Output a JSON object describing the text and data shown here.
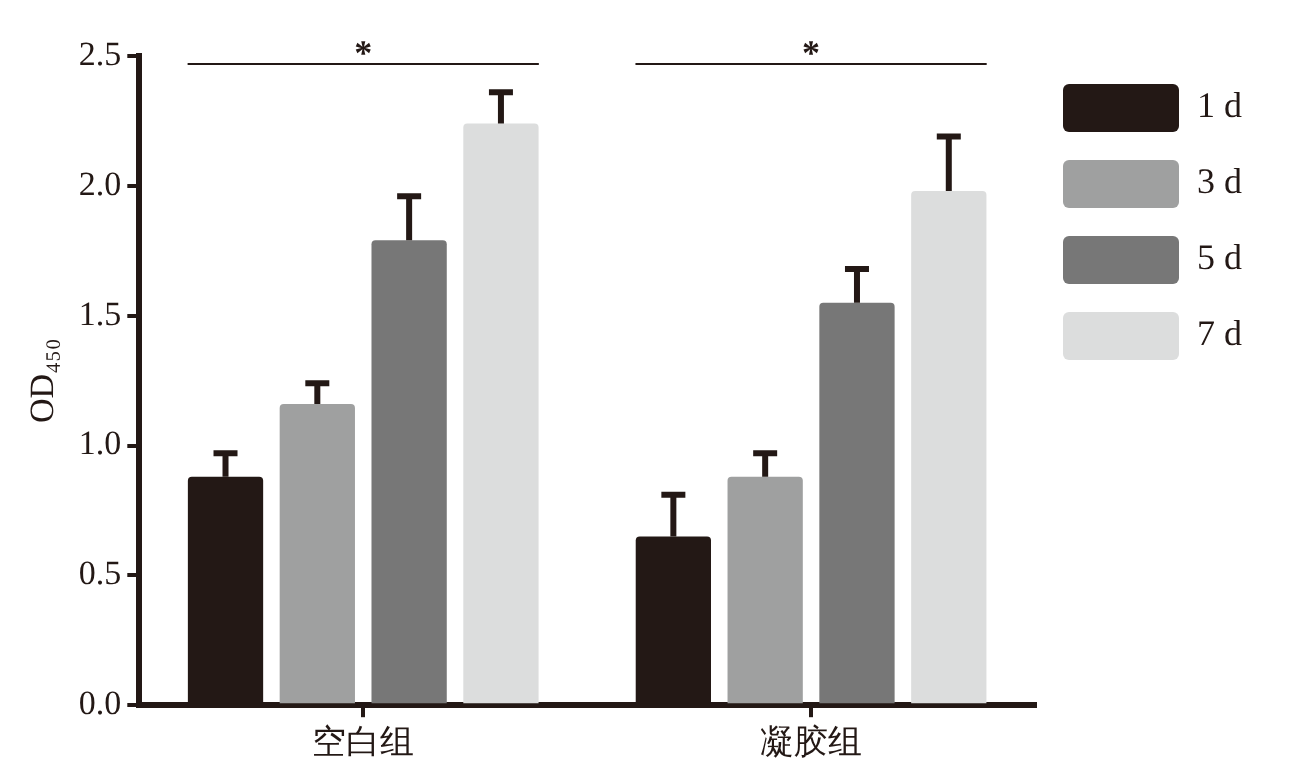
{
  "chart_data": {
    "type": "bar",
    "ylabel": "OD₄₅₀",
    "categories": [
      "空白组",
      "凝胶组"
    ],
    "series": [
      {
        "name": "1 d",
        "color": "#231815",
        "values": [
          0.88,
          0.65
        ],
        "errors": [
          [
            0.88,
            0.97
          ],
          [
            0.65,
            0.81
          ]
        ]
      },
      {
        "name": "3 d",
        "color": "#9fa0a0",
        "values": [
          1.16,
          0.88
        ],
        "errors": [
          [
            1.16,
            1.24
          ],
          [
            0.88,
            0.97
          ]
        ]
      },
      {
        "name": "5 d",
        "color": "#777777",
        "values": [
          1.79,
          1.55
        ],
        "errors": [
          [
            1.79,
            1.96
          ],
          [
            1.55,
            1.68
          ]
        ]
      },
      {
        "name": "7 d",
        "color": "#dcdddd",
        "values": [
          2.24,
          1.98
        ],
        "errors": [
          [
            2.24,
            2.36
          ],
          [
            1.98,
            2.19
          ]
        ]
      }
    ],
    "ylim": [
      0,
      2.5
    ],
    "yticks": [
      {
        "value": 0,
        "label": "0.0"
      },
      0.5,
      {
        "value": 1,
        "label": "1.0"
      },
      1.5,
      {
        "value": 2,
        "label": "2.0"
      },
      2.5
    ],
    "legend": "top right",
    "annotations": [
      "*",
      "*"
    ]
  }
}
